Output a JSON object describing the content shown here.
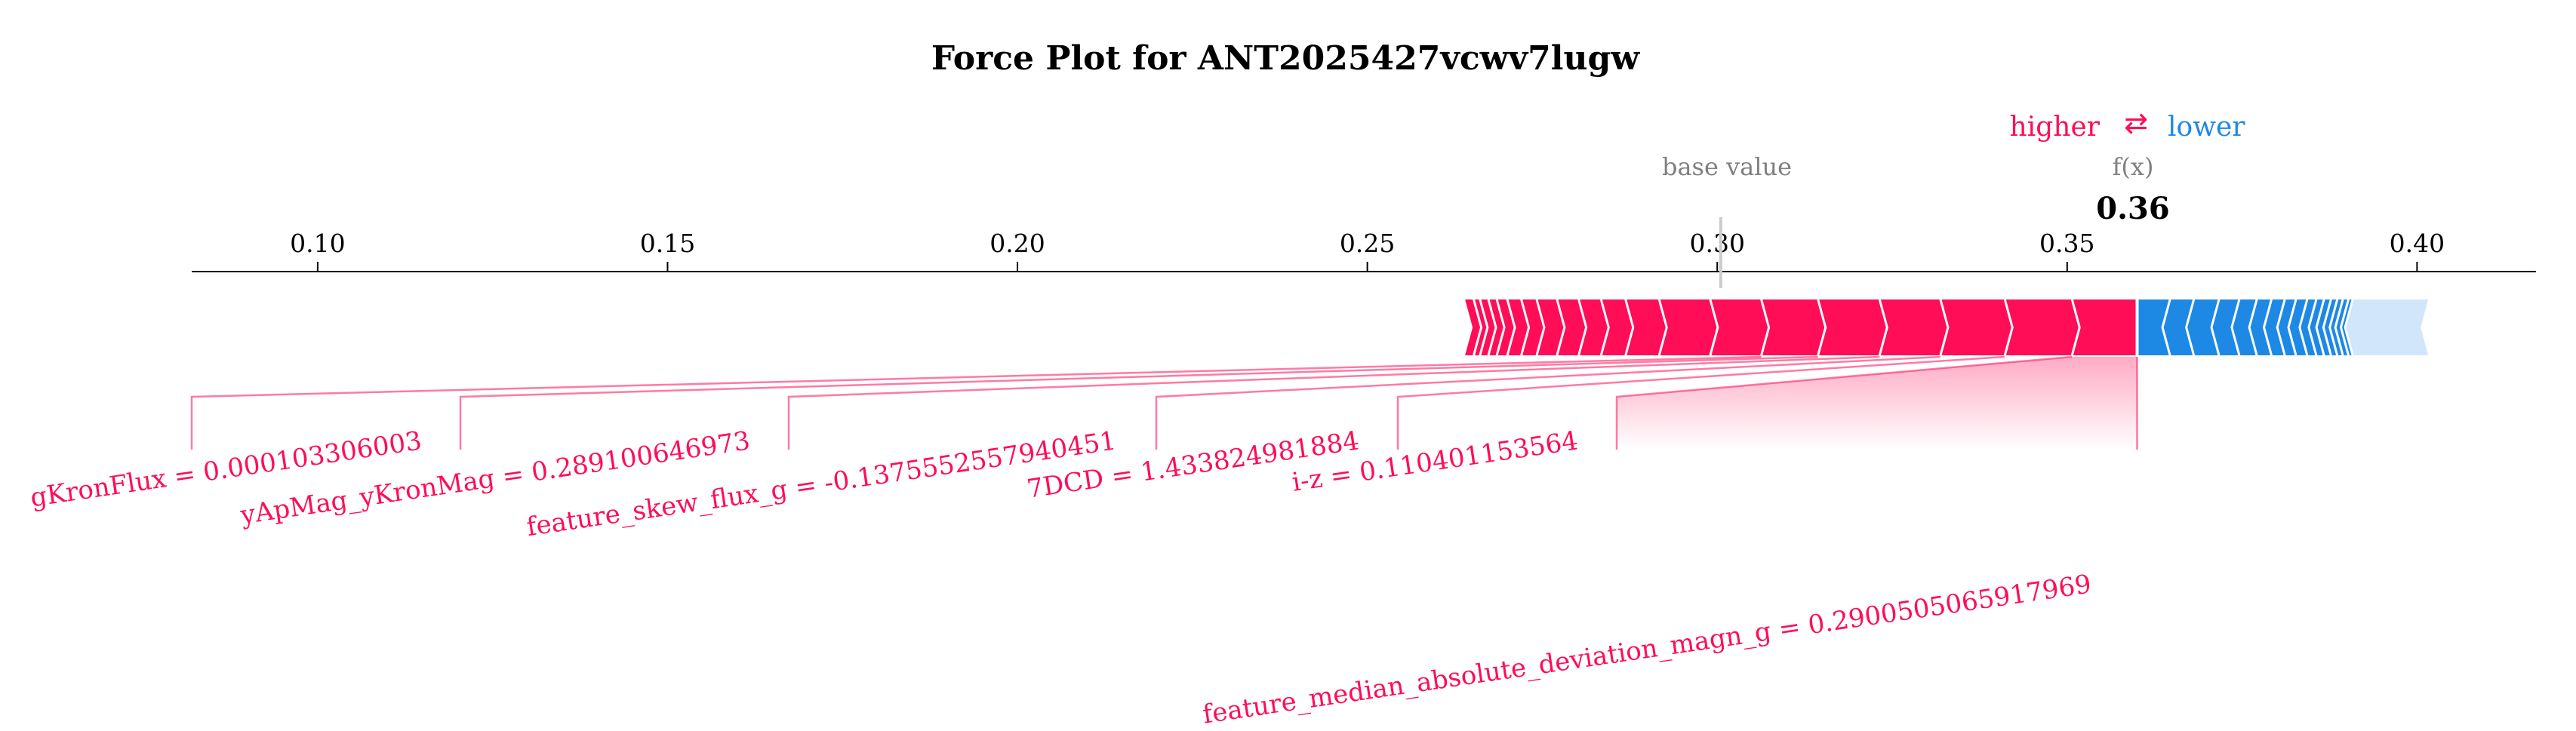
{
  "chart_data": {
    "type": "force",
    "title": "Force Plot for ANT2025427vcwv7lugw",
    "legend": {
      "higher_label": "higher",
      "lower_label": "lower",
      "arrow_glyph": "⇄"
    },
    "base_value_label": "base value",
    "fx_label": "f(x)",
    "output_value": 0.36,
    "output_value_text": "0.36",
    "base_value": 0.3005,
    "xlim": [
      0.082,
      0.417
    ],
    "ticks": [
      {
        "value": 0.1,
        "label": "0.10"
      },
      {
        "value": 0.15,
        "label": "0.15"
      },
      {
        "value": 0.2,
        "label": "0.20"
      },
      {
        "value": 0.25,
        "label": "0.25"
      },
      {
        "value": 0.3,
        "label": "0.30"
      },
      {
        "value": 0.35,
        "label": "0.35"
      },
      {
        "value": 0.4,
        "label": "0.40"
      }
    ],
    "positive_features": [
      {
        "label": "feature_median_absolute_deviation_magn_g = 0.2900505065917969",
        "start": 0.3507,
        "end": 0.36
      },
      {
        "label": "i-z = 0.110401153564",
        "start": 0.3411,
        "end": 0.3507
      },
      {
        "label": "7DCD = 1.433824981884",
        "start": 0.3319,
        "end": 0.3411
      },
      {
        "label": "feature_skew_flux_g = -0.1375552557940451",
        "start": 0.3232,
        "end": 0.3319
      },
      {
        "label": "yApMag_yKronMag = 0.289100646973",
        "start": 0.3144,
        "end": 0.3232
      },
      {
        "label": "gKronFlux = 0.000103306003",
        "start": 0.3063,
        "end": 0.3144
      }
    ],
    "positive_tail_edges": [
      0.3063,
      0.299,
      0.2917,
      0.2869,
      0.2834,
      0.2802,
      0.2771,
      0.2742,
      0.272,
      0.27,
      0.2685,
      0.2673,
      0.2661,
      0.2652,
      0.2638
    ],
    "negative_edges": [
      0.36,
      0.3647,
      0.3681,
      0.3717,
      0.3746,
      0.3771,
      0.3792,
      0.3811,
      0.3827,
      0.3843,
      0.3856,
      0.3867,
      0.3877,
      0.3886,
      0.3894,
      0.3902,
      0.3908
    ],
    "negative_light_end": 0.4016,
    "colors": {
      "positive": "#ff0d57",
      "positive_light": "#ffc3d5",
      "negative": "#1e88e5",
      "negative_light": "#d1e6fa",
      "base_value_text": "#808080",
      "axis": "#000000"
    }
  }
}
